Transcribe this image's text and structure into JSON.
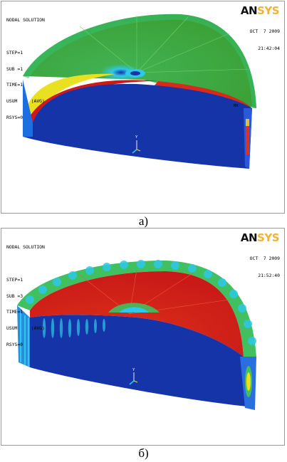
{
  "panels": [
    {
      "info": [
        "NODAL SOLUTION",
        "STEP=1",
        "SUB =1",
        "TIME=1",
        "USUM     (AVG)",
        "RSYS=0"
      ],
      "logo_main": "AN",
      "logo_accent": "SYS",
      "date": "OCT  7 2009",
      "time": "21:42:04",
      "marker": "MX",
      "axis": "Y",
      "caption": "а)"
    },
    {
      "info": [
        "NODAL SOLUTION",
        "STEP=1",
        "SUB =3",
        "TIME=1",
        "USUM     (AVG)",
        "RSYS=0"
      ],
      "logo_main": "AN",
      "logo_accent": "SYS",
      "date": "OCT  7 2009",
      "time": "21:52:40",
      "axis": "Y",
      "caption": "б)"
    }
  ],
  "colors": {
    "blue": "#1434a8",
    "cyan": "#2ec8e8",
    "green": "#3fa832",
    "yellow": "#e8e020",
    "red": "#d01818",
    "ansys_accent": "#f2b233"
  }
}
